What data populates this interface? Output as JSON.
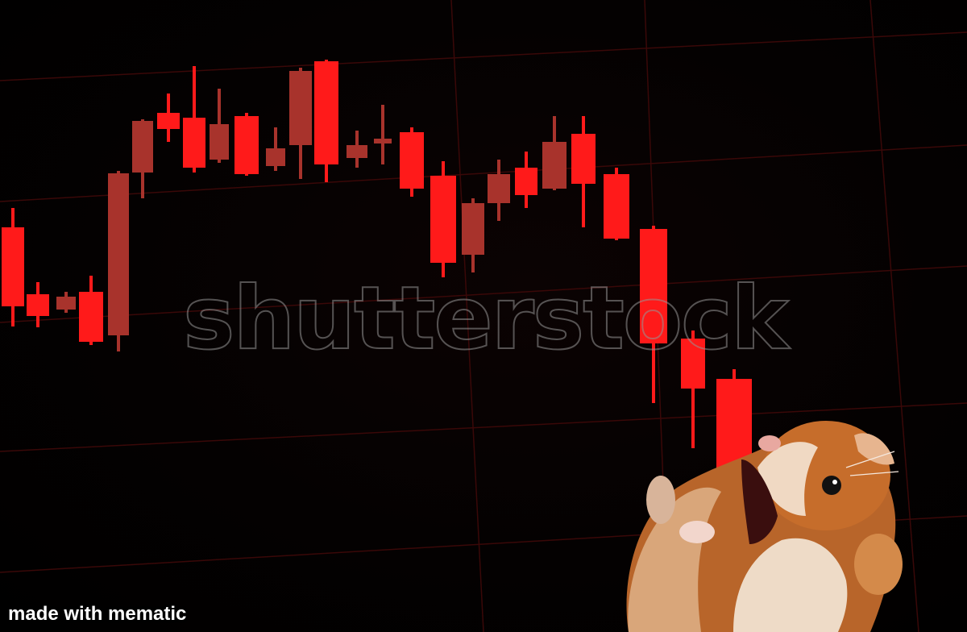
{
  "watermark": {
    "text": "shutterstock"
  },
  "caption": {
    "text": "made with mematic"
  },
  "colors": {
    "candle_bright": "#ff1a1a",
    "candle_dim": "#a8332c",
    "grid": "#3a0808",
    "hamster_fur": "#c9732f",
    "hamster_belly": "#f2dccb"
  },
  "icons": {
    "hamster": "hamster-photo"
  }
}
